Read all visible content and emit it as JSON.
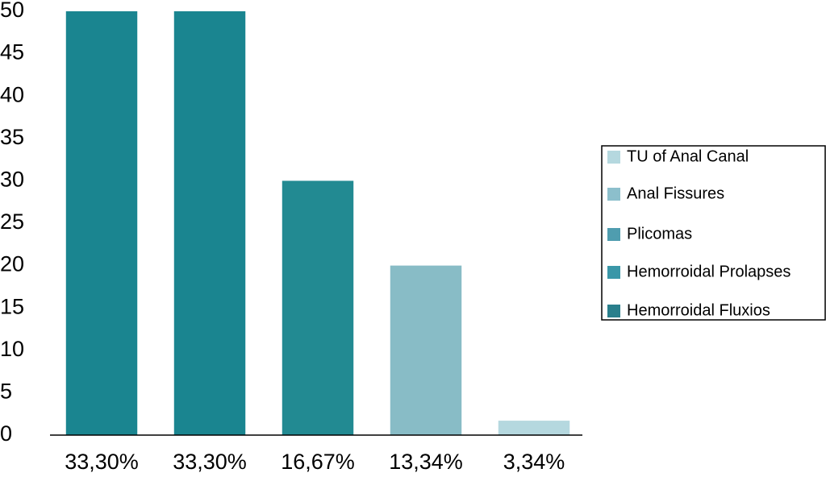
{
  "chart_data": {
    "type": "bar",
    "categories": [
      "33,30%",
      "33,30%",
      "16,67%",
      "13,34%",
      "3,34%"
    ],
    "values": [
      50,
      50,
      30,
      20,
      1.7
    ],
    "colors": [
      "#1a8590",
      "#1a8590",
      "#228a92",
      "#88bcc6",
      "#b5d8df"
    ],
    "ylim": [
      0,
      50
    ],
    "yticks": [
      0,
      5,
      10,
      15,
      20,
      25,
      30,
      35,
      40,
      45,
      50
    ],
    "grid": false,
    "legend": [
      {
        "name": "TU of Anal  Canal",
        "color": "#b5d8df"
      },
      {
        "name": "Anal Fissures",
        "color": "#8cbfcc"
      },
      {
        "name": "Plicomas",
        "color": "#4f9daf"
      },
      {
        "name": "Hemorroidal  Prolapses",
        "color": "#3a97a8"
      },
      {
        "name": "Hemorroidal  Fluxios",
        "color": "#2a7f8c"
      }
    ],
    "legend_position": "right"
  }
}
